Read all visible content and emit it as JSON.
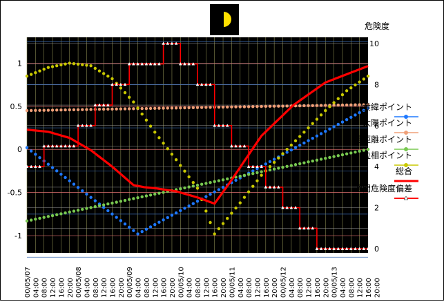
{
  "chart_data": {
    "type": "line",
    "icon": "moon-phase-icon",
    "title": "",
    "xlabel": "",
    "ylabel": "",
    "y2label": "危険度",
    "ylim": [
      -1.2,
      1.3
    ],
    "yticks": [
      1,
      0.5,
      0,
      -0.5,
      -1
    ],
    "ytick_labels": [
      "1",
      "0.5",
      "0",
      "-0.5",
      "-1"
    ],
    "y2lim": [
      -0.2,
      10.3
    ],
    "y2ticks": [
      10,
      8,
      6,
      4,
      2,
      0
    ],
    "y2tick_labels": [
      "10",
      "8",
      "6",
      "4",
      "2",
      "0"
    ],
    "x_hours_range": [
      0,
      160
    ],
    "xtick_labels": [
      "00/05/07",
      "04:00",
      "08:00",
      "12:00",
      "16:00",
      "20:00",
      "00/05/08",
      "04:00",
      "08:00",
      "12:00",
      "16:00",
      "20:00",
      "00/05/09",
      "04:00",
      "08:00",
      "12:00",
      "16:00",
      "20:00",
      "00/05/10",
      "04:00",
      "08:00",
      "12:00",
      "16:00",
      "20:00",
      "00/05/11",
      "04:00",
      "08:00",
      "12:00",
      "16:00",
      "20:00",
      "00/05/12",
      "04:00",
      "08:00",
      "12:00",
      "16:00",
      "20:00",
      "00/05/13",
      "04:00",
      "08:00",
      "12:00",
      "16:00",
      "20:00"
    ],
    "grid": true,
    "legend_position": "right",
    "plot_background": "#000000",
    "series": [
      {
        "name": "黄緯ポイント",
        "color": "#1e78ff",
        "marker": "circle",
        "axis": "left",
        "x": [
          0,
          52,
          160
        ],
        "y": [
          0.02,
          -0.98,
          0.48
        ]
      },
      {
        "name": "太陽ポイント",
        "color": "#f0a078",
        "marker": "circle",
        "axis": "left",
        "x": [
          0,
          160
        ],
        "y": [
          0.45,
          0.52
        ]
      },
      {
        "name": "月距離ポイント",
        "color": "#78c850",
        "marker": "circle",
        "axis": "left",
        "x": [
          0,
          160
        ],
        "y": [
          -0.83,
          0.0
        ]
      },
      {
        "name": "位相ポイント",
        "color": "#c8c800",
        "marker": "circle",
        "axis": "left",
        "x": [
          0,
          10,
          20,
          30,
          40,
          50,
          60,
          70,
          80,
          88,
          100,
          110,
          120,
          130,
          140,
          150,
          160
        ],
        "y": [
          0.85,
          0.95,
          1.0,
          0.97,
          0.82,
          0.55,
          0.2,
          -0.12,
          -0.45,
          -0.98,
          -0.62,
          -0.3,
          -0.05,
          0.2,
          0.45,
          0.68,
          0.85
        ]
      },
      {
        "name": "総合",
        "color": "#ff0000",
        "marker": "none",
        "axis": "right",
        "x": [
          0,
          10,
          20,
          30,
          40,
          50,
          55,
          60,
          70,
          80,
          88,
          95,
          110,
          125,
          140,
          160
        ],
        "y": [
          5.8,
          5.7,
          5.4,
          4.8,
          4.0,
          3.1,
          3.0,
          2.95,
          2.8,
          2.5,
          2.2,
          3.2,
          5.5,
          7.0,
          8.1,
          8.9
        ]
      },
      {
        "name": "週間危険度偏差",
        "color": "#ff0000",
        "marker": "triangle",
        "axis": "right",
        "step": true,
        "x": [
          0,
          8,
          24,
          32,
          40,
          48,
          56,
          64,
          72,
          80,
          88,
          96,
          104,
          112,
          120,
          128,
          136,
          144,
          152,
          160
        ],
        "y": [
          4.0,
          5.0,
          6.0,
          7.0,
          8.0,
          9.0,
          9.0,
          10.0,
          9.0,
          8.0,
          6.0,
          5.0,
          4.0,
          3.0,
          2.0,
          1.0,
          0.0,
          0.0,
          0.0,
          0.0
        ]
      }
    ]
  }
}
